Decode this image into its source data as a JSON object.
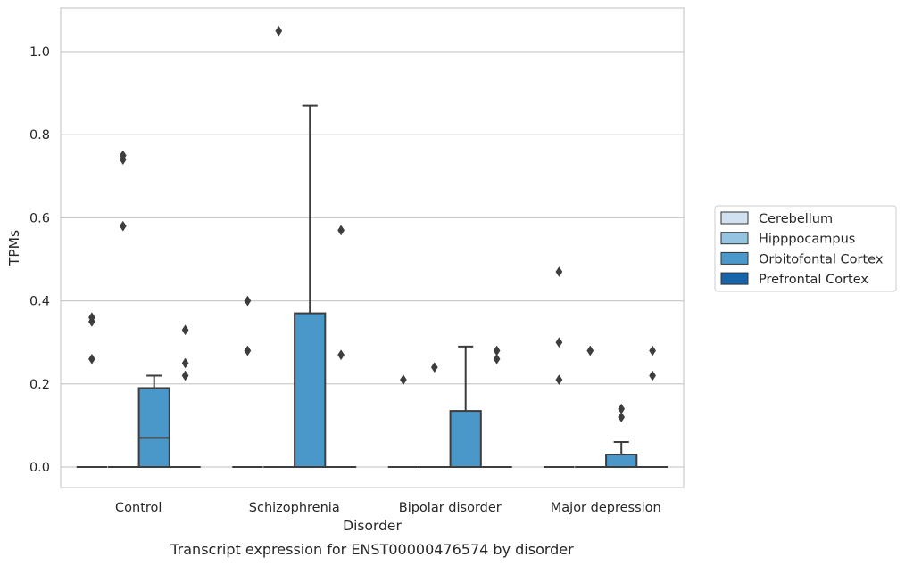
{
  "caption": "Transcript expression for ENST00000476574 by disorder",
  "legend": {
    "entries": [
      {
        "label": "Cerebellum",
        "color": "#d0e1f2"
      },
      {
        "label": "Hipppocampus",
        "color": "#94c4df"
      },
      {
        "label": "Orbitofontal Cortex",
        "color": "#4a98c9"
      },
      {
        "label": "Prefrontal Cortex",
        "color": "#1764ab"
      }
    ]
  },
  "chart_data": {
    "type": "box",
    "xlabel": "Disorder",
    "ylabel": "TPMs",
    "ylim": [
      -0.05,
      1.1
    ],
    "yticks": [
      "0.0",
      "0.2",
      "0.4",
      "0.6",
      "0.8",
      "1.0"
    ],
    "grid": true,
    "legend_position": "right",
    "categories": [
      "Control",
      "Schizophrenia",
      "Bipolar disorder",
      "Major depression"
    ],
    "series": [
      {
        "name": "Cerebellum",
        "color": "#d0e1f2",
        "boxes": [
          {
            "q1": 0,
            "median": 0,
            "q3": 0,
            "whisker_low": 0,
            "whisker_high": 0,
            "outliers": [
              0.26,
              0.35,
              0.36
            ]
          },
          {
            "q1": 0,
            "median": 0,
            "q3": 0,
            "whisker_low": 0,
            "whisker_high": 0,
            "outliers": [
              0.28,
              0.4
            ]
          },
          {
            "q1": 0,
            "median": 0,
            "q3": 0,
            "whisker_low": 0,
            "whisker_high": 0,
            "outliers": [
              0.21
            ]
          },
          {
            "q1": 0,
            "median": 0,
            "q3": 0,
            "whisker_low": 0,
            "whisker_high": 0,
            "outliers": [
              0.21,
              0.3,
              0.47
            ]
          }
        ]
      },
      {
        "name": "Hipppocampus",
        "color": "#94c4df",
        "boxes": [
          {
            "q1": 0,
            "median": 0,
            "q3": 0,
            "whisker_low": 0,
            "whisker_high": 0,
            "outliers": [
              0.58,
              0.74,
              0.75
            ]
          },
          {
            "q1": 0,
            "median": 0,
            "q3": 0,
            "whisker_low": 0,
            "whisker_high": 0,
            "outliers": [
              1.05
            ]
          },
          {
            "q1": 0,
            "median": 0,
            "q3": 0,
            "whisker_low": 0,
            "whisker_high": 0,
            "outliers": [
              0.24
            ]
          },
          {
            "q1": 0,
            "median": 0,
            "q3": 0,
            "whisker_low": 0,
            "whisker_high": 0,
            "outliers": [
              0.28
            ]
          }
        ]
      },
      {
        "name": "Orbitofontal Cortex",
        "color": "#4a98c9",
        "boxes": [
          {
            "q1": 0,
            "median": 0.07,
            "q3": 0.19,
            "whisker_low": 0,
            "whisker_high": 0.22,
            "outliers": []
          },
          {
            "q1": 0,
            "median": 0,
            "q3": 0.37,
            "whisker_low": 0,
            "whisker_high": 0.87,
            "outliers": []
          },
          {
            "q1": 0,
            "median": 0,
            "q3": 0.135,
            "whisker_low": 0,
            "whisker_high": 0.29,
            "outliers": []
          },
          {
            "q1": 0,
            "median": 0,
            "q3": 0.03,
            "whisker_low": 0,
            "whisker_high": 0.06,
            "outliers": [
              0.12,
              0.14
            ]
          }
        ]
      },
      {
        "name": "Prefrontal Cortex",
        "color": "#1764ab",
        "boxes": [
          {
            "q1": 0,
            "median": 0,
            "q3": 0,
            "whisker_low": 0,
            "whisker_high": 0,
            "outliers": [
              0.22,
              0.25,
              0.33
            ]
          },
          {
            "q1": 0,
            "median": 0,
            "q3": 0,
            "whisker_low": 0,
            "whisker_high": 0,
            "outliers": [
              0.27,
              0.57
            ]
          },
          {
            "q1": 0,
            "median": 0,
            "q3": 0,
            "whisker_low": 0,
            "whisker_high": 0,
            "outliers": [
              0.26,
              0.28
            ]
          },
          {
            "q1": 0,
            "median": 0,
            "q3": 0,
            "whisker_low": 0,
            "whisker_high": 0,
            "outliers": [
              0.22,
              0.28
            ]
          }
        ]
      }
    ]
  }
}
